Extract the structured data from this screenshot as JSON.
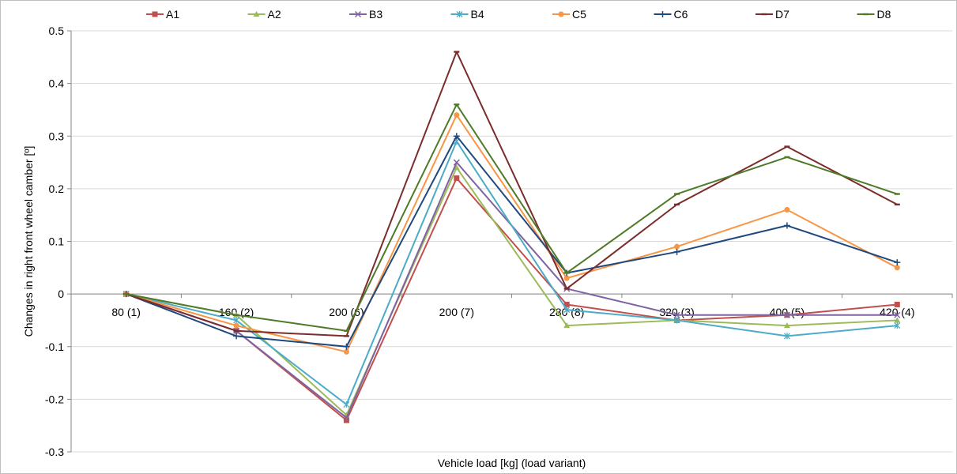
{
  "chart_data": {
    "type": "line",
    "xlabel": "Vehicle load [kg] (load variant)",
    "ylabel": "Changes in right  front wheel camber [º]",
    "categories": [
      "80 (1)",
      "160 (2)",
      "200 (6)",
      "200 (7)",
      "280 (8)",
      "320 (3)",
      "400 (5)",
      "420 (4)"
    ],
    "ylim": [
      -0.3,
      0.5
    ],
    "yticks": [
      -0.3,
      -0.2,
      -0.1,
      0,
      0.1,
      0.2,
      0.3,
      0.4,
      0.5
    ],
    "ytick_labels": [
      "-0.3",
      "-0.2",
      "-0.1",
      "0",
      "0.1",
      "0.2",
      "0.3",
      "0.4",
      "0.5"
    ],
    "grid": "horizontal",
    "legend_position": "top",
    "series": [
      {
        "name": "A1",
        "color": "#c0504d",
        "marker": "square",
        "values": [
          0,
          -0.07,
          -0.24,
          0.22,
          -0.02,
          -0.05,
          -0.04,
          -0.02
        ]
      },
      {
        "name": "A2",
        "color": "#9bbb59",
        "marker": "triangle",
        "values": [
          0,
          -0.04,
          -0.23,
          0.24,
          -0.06,
          -0.05,
          -0.06,
          -0.05
        ]
      },
      {
        "name": "B3",
        "color": "#8064a2",
        "marker": "x",
        "values": [
          0,
          -0.07,
          -0.235,
          0.25,
          0.01,
          -0.04,
          -0.04,
          -0.04
        ]
      },
      {
        "name": "B4",
        "color": "#4bacc6",
        "marker": "star",
        "values": [
          0,
          -0.05,
          -0.21,
          0.29,
          -0.03,
          -0.05,
          -0.08,
          -0.06
        ]
      },
      {
        "name": "C5",
        "color": "#f79646",
        "marker": "circle",
        "values": [
          0,
          -0.06,
          -0.11,
          0.34,
          0.03,
          0.09,
          0.16,
          0.05
        ]
      },
      {
        "name": "C6",
        "color": "#1f497d",
        "marker": "plus",
        "values": [
          0,
          -0.08,
          -0.1,
          0.3,
          0.04,
          0.08,
          0.13,
          0.06
        ]
      },
      {
        "name": "D7",
        "color": "#7b2c2c",
        "marker": "dash",
        "values": [
          0,
          -0.07,
          -0.08,
          0.46,
          0.01,
          0.17,
          0.28,
          0.17
        ]
      },
      {
        "name": "D8",
        "color": "#4f7a28",
        "marker": "dash",
        "values": [
          0,
          -0.04,
          -0.07,
          0.36,
          0.04,
          0.19,
          0.26,
          0.19
        ]
      }
    ]
  }
}
